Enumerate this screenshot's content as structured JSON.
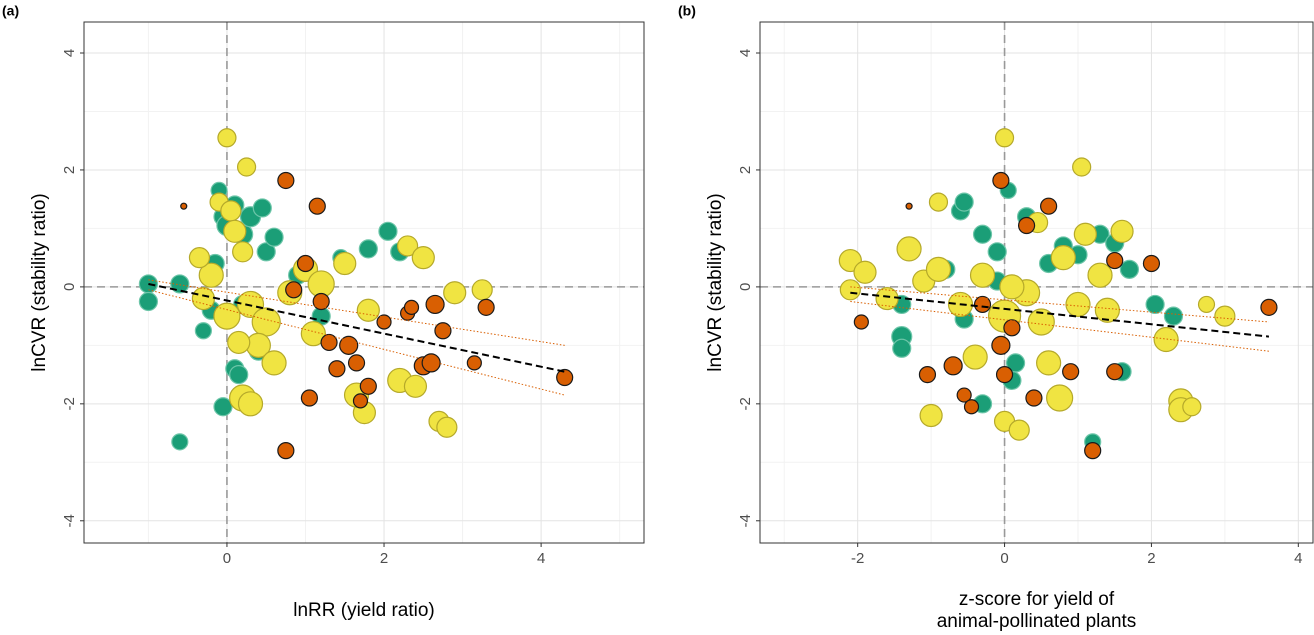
{
  "chart_data": [
    {
      "type": "scatter",
      "panel_label": "(a)",
      "xlabel": [
        "lnRR (yield ratio)"
      ],
      "ylabel": "lnCVR (stability ratio)",
      "xlim": [
        -1.82,
        5.31
      ],
      "ylim": [
        -4.38,
        4.53
      ],
      "xticks": [
        0,
        2,
        4
      ],
      "yticks": [
        -4,
        -2,
        0,
        2,
        4
      ],
      "minor_xticks": [
        -1,
        1,
        3,
        5
      ],
      "minor_yticks": [
        -3,
        -1,
        1,
        3
      ],
      "grid": true,
      "hline": 0,
      "vline": 0,
      "series": [
        {
          "color": "#1b9e77",
          "stroke": "#6cc5a8",
          "x": [
            -1,
            -1,
            -0.6,
            -0.3,
            -0.3,
            -0.15,
            -0.1,
            -0.05,
            0,
            0.1,
            0.2,
            0.3,
            0.45,
            0.5,
            0.6,
            0.1,
            0.15,
            0.4,
            -0.05,
            -0.6,
            0.2,
            1.2,
            1.8,
            2.05,
            2.2,
            1.45,
            0.9,
            -0.2
          ],
          "y": [
            0.05,
            -0.25,
            0.05,
            -0.75,
            -0.2,
            0.4,
            1.65,
            1.2,
            1.05,
            1.4,
            0.9,
            1.2,
            1.35,
            0.6,
            0.85,
            -1.4,
            -1.5,
            -1.1,
            -2.05,
            -2.65,
            -0.3,
            -0.5,
            0.65,
            0.95,
            0.6,
            0.5,
            0.2,
            -0.4
          ],
          "sizes": [
            9,
            9,
            9,
            8,
            9,
            9,
            8,
            9,
            10,
            9,
            10,
            10,
            9,
            9,
            9,
            9,
            9,
            9,
            9,
            8,
            9,
            9,
            9,
            9,
            9,
            8,
            9,
            9
          ]
        },
        {
          "color": "#f0e442",
          "stroke": "#b5a92a",
          "x": [
            0,
            0.25,
            -0.1,
            0.05,
            0.1,
            0.2,
            -0.2,
            -0.3,
            0,
            0.3,
            0.5,
            0.8,
            1.0,
            1.2,
            1.5,
            0.4,
            0.2,
            0.3,
            0.6,
            1.8,
            2.3,
            2.5,
            2.2,
            2.4,
            2.7,
            2.8,
            2.9,
            3.25,
            1.75,
            1.65,
            0.15,
            -0.35,
            1.1
          ],
          "y": [
            2.55,
            2.05,
            1.45,
            1.3,
            0.95,
            0.6,
            0.2,
            -0.2,
            -0.5,
            -0.3,
            -0.6,
            -0.1,
            0.3,
            0.05,
            0.4,
            -1.0,
            -1.9,
            -2.0,
            -1.3,
            -0.4,
            0.7,
            0.5,
            -1.6,
            -1.7,
            -2.3,
            -2.4,
            -0.1,
            -0.05,
            -2.15,
            -1.85,
            -0.95,
            0.5,
            -0.8
          ],
          "sizes": [
            9,
            9,
            9,
            10,
            11,
            10,
            12,
            11,
            13,
            13,
            14,
            12,
            12,
            13,
            11,
            12,
            13,
            12,
            12,
            11,
            10,
            11,
            12,
            11,
            10,
            10,
            11,
            10,
            11,
            12,
            11,
            10,
            12
          ]
        },
        {
          "color": "#d95f02",
          "stroke": "#1a1a1a",
          "x": [
            -0.55,
            0.75,
            1.15,
            0.75,
            1.05,
            1.4,
            1.55,
            1.65,
            1.8,
            2.0,
            2.3,
            2.35,
            2.5,
            2.6,
            2.65,
            2.75,
            3.3,
            3.15,
            4.3,
            1.0,
            1.2,
            0.85,
            1.7,
            1.3
          ],
          "y": [
            1.38,
            1.82,
            1.38,
            -2.8,
            -1.9,
            -1.4,
            -1.0,
            -1.3,
            -1.7,
            -0.6,
            -0.45,
            -0.35,
            -1.35,
            -1.3,
            -0.3,
            -0.75,
            -0.35,
            -1.3,
            -1.55,
            0.4,
            -0.25,
            -0.05,
            -1.95,
            -0.95
          ],
          "sizes": [
            3,
            8,
            8,
            8,
            8,
            8,
            9,
            8,
            8,
            7,
            7,
            7,
            9,
            9,
            9,
            8,
            8,
            7,
            8,
            8,
            8,
            8,
            7,
            8
          ]
        }
      ],
      "fit": {
        "x": [
          -1,
          4.3
        ],
        "y": [
          0.05,
          -1.45
        ],
        "ci_upper": [
          0.12,
          -1.0
        ],
        "ci_lower": [
          -0.05,
          -1.85
        ]
      }
    },
    {
      "type": "scatter",
      "panel_label": "(b)",
      "xlabel": [
        "z-score for yield of",
        "animal-pollinated plants"
      ],
      "ylabel": "lnCVR (stability ratio)",
      "xlim": [
        -3.33,
        4.2
      ],
      "ylim": [
        -4.38,
        4.53
      ],
      "xticks": [
        -2,
        0,
        2,
        4
      ],
      "yticks": [
        -4,
        -2,
        0,
        2,
        4
      ],
      "minor_xticks": [
        -3,
        -1,
        1,
        3
      ],
      "minor_yticks": [
        -3,
        -1,
        1,
        3
      ],
      "grid": true,
      "hline": 0,
      "vline": 0,
      "series": [
        {
          "color": "#1b9e77",
          "stroke": "#6cc5a8",
          "x": [
            -1.4,
            -1.4,
            -1.4,
            -0.8,
            -0.6,
            -0.55,
            -0.3,
            -0.1,
            0.05,
            0.3,
            0.35,
            0.6,
            1.0,
            1.3,
            1.5,
            1.7,
            2.05,
            2.3,
            1.6,
            0.1,
            0.15,
            -0.3,
            1.2,
            -0.1,
            -0.55,
            0.8
          ],
          "y": [
            -0.3,
            -0.85,
            -1.05,
            0.3,
            1.3,
            1.45,
            0.9,
            0.6,
            1.65,
            1.2,
            -0.1,
            0.4,
            0.55,
            0.9,
            0.75,
            0.3,
            -0.3,
            -0.5,
            -1.45,
            -1.6,
            -1.3,
            -2.0,
            -2.65,
            0.1,
            -0.55,
            0.7
          ],
          "sizes": [
            9,
            10,
            9,
            9,
            9,
            9,
            9,
            9,
            8,
            9,
            9,
            9,
            9,
            9,
            9,
            9,
            9,
            9,
            9,
            9,
            9,
            9,
            8,
            9,
            9,
            9
          ]
        },
        {
          "color": "#f0e442",
          "stroke": "#b5a92a",
          "x": [
            -2.1,
            -1.9,
            -2.1,
            -1.6,
            -1.3,
            -1.1,
            -0.9,
            -0.6,
            -0.3,
            0,
            0.3,
            0.1,
            0.5,
            0.8,
            1.0,
            1.1,
            1.3,
            1.6,
            0.0,
            1.05,
            -1.0,
            0.0,
            0.2,
            0.75,
            2.4,
            2.4,
            2.55,
            2.75,
            3.0,
            2.2,
            -0.4,
            0.6,
            1.4,
            0.45,
            -0.9
          ],
          "y": [
            0.45,
            0.25,
            -0.05,
            -0.2,
            0.65,
            0.1,
            0.3,
            -0.3,
            0.2,
            -0.5,
            -0.1,
            0.0,
            -0.6,
            0.5,
            -0.3,
            0.9,
            0.2,
            0.95,
            2.55,
            2.05,
            -2.2,
            -2.3,
            -2.45,
            -1.9,
            -1.95,
            -2.1,
            -2.05,
            -0.3,
            -0.5,
            -0.9,
            -1.2,
            -1.3,
            -0.4,
            1.1,
            1.45
          ],
          "sizes": [
            11,
            11,
            10,
            11,
            12,
            11,
            12,
            12,
            12,
            16,
            13,
            12,
            13,
            12,
            12,
            11,
            12,
            11,
            9,
            9,
            11,
            10,
            10,
            13,
            12,
            12,
            9,
            8,
            10,
            12,
            12,
            12,
            12,
            10,
            9
          ]
        },
        {
          "color": "#d95f02",
          "stroke": "#1a1a1a",
          "x": [
            -1.3,
            -0.05,
            0.3,
            0.6,
            -1.95,
            -1.05,
            -0.7,
            -0.55,
            -0.45,
            -0.3,
            -0.05,
            0.0,
            0.4,
            0.9,
            1.2,
            1.5,
            1.5,
            2.0,
            3.6,
            0.1
          ],
          "y": [
            1.38,
            1.82,
            1.05,
            1.38,
            -0.6,
            -1.5,
            -1.35,
            -1.85,
            -2.05,
            -0.3,
            -1.0,
            -1.5,
            -1.9,
            -1.45,
            -2.8,
            -1.45,
            0.45,
            0.4,
            -0.35,
            -0.7
          ],
          "sizes": [
            3,
            8,
            8,
            8,
            7,
            8,
            9,
            7,
            7,
            8,
            9,
            8,
            8,
            8,
            8,
            8,
            8,
            8,
            8,
            8
          ]
        }
      ],
      "fit": {
        "x": [
          -2.1,
          3.6
        ],
        "y": [
          -0.1,
          -0.85
        ],
        "ci_upper": [
          0.0,
          -0.6
        ],
        "ci_lower": [
          -0.25,
          -1.1
        ]
      }
    }
  ]
}
